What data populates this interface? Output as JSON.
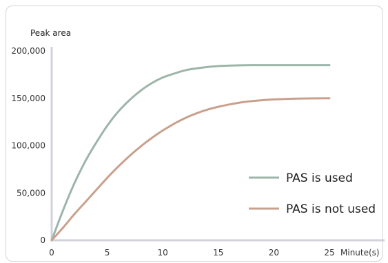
{
  "chart_data": {
    "type": "line",
    "ylabel": "Peak  area",
    "xlabel": "Minute(s)",
    "xlim": [
      0,
      25
    ],
    "ylim": [
      0,
      200000
    ],
    "x_ticks": [
      "0",
      "5",
      "10",
      "15",
      "20",
      "25"
    ],
    "y_ticks": [
      "0",
      "50,000",
      "100,000",
      "150,000",
      "200,000"
    ],
    "legend_position": "lower-right",
    "grid": false,
    "series": [
      {
        "name": "PAS is used",
        "color": "#9db5a9",
        "x": [
          0,
          1,
          2,
          3,
          4,
          5,
          6,
          7,
          8,
          9,
          10,
          11,
          12,
          13,
          14,
          15,
          16,
          17,
          18,
          19,
          20,
          21,
          22,
          23,
          24,
          25
        ],
        "values": [
          0,
          31000,
          59000,
          83000,
          103000,
          121000,
          136000,
          148000,
          158000,
          166000,
          172000,
          176000,
          179500,
          181500,
          183000,
          184000,
          184500,
          184800,
          185000,
          185000,
          185000,
          185000,
          185000,
          185000,
          185000,
          185000
        ]
      },
      {
        "name": "PAS is not used",
        "color": "#c9a08c",
        "x": [
          0,
          1,
          2,
          3,
          4,
          5,
          6,
          7,
          8,
          9,
          10,
          11,
          12,
          13,
          14,
          15,
          16,
          17,
          18,
          19,
          20,
          21,
          22,
          23,
          24,
          25
        ],
        "values": [
          0,
          13000,
          27000,
          40000,
          53000,
          66000,
          78000,
          89000,
          99000,
          108000,
          116000,
          123000,
          129000,
          134000,
          138000,
          141000,
          143500,
          145500,
          147000,
          148000,
          148800,
          149300,
          149600,
          149800,
          149900,
          150000
        ]
      }
    ]
  }
}
